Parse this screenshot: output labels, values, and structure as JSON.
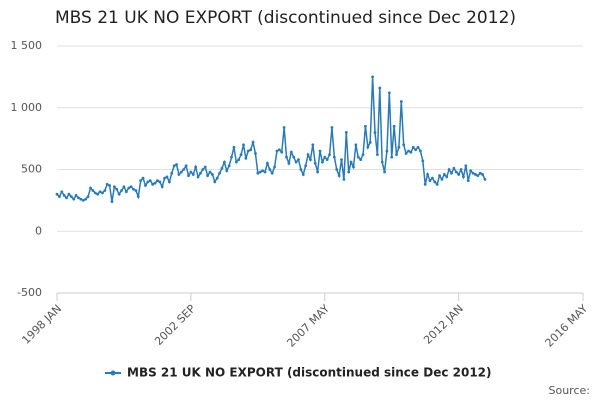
{
  "chart_data": {
    "type": "line",
    "title": "MBS 21 UK NO EXPORT (discontinued since Dec 2012)",
    "source": "Source:",
    "x": [
      "1998-01",
      "1998-02",
      "1998-03",
      "1998-04",
      "1998-05",
      "1998-06",
      "1998-07",
      "1998-08",
      "1998-09",
      "1998-10",
      "1998-11",
      "1998-12",
      "1999-01",
      "1999-02",
      "1999-03",
      "1999-04",
      "1999-05",
      "1999-06",
      "1999-07",
      "1999-08",
      "1999-09",
      "1999-10",
      "1999-11",
      "1999-12",
      "2000-01",
      "2000-02",
      "2000-03",
      "2000-04",
      "2000-05",
      "2000-06",
      "2000-07",
      "2000-08",
      "2000-09",
      "2000-10",
      "2000-11",
      "2000-12",
      "2001-01",
      "2001-02",
      "2001-03",
      "2001-04",
      "2001-05",
      "2001-06",
      "2001-07",
      "2001-08",
      "2001-09",
      "2001-10",
      "2001-11",
      "2001-12",
      "2002-01",
      "2002-02",
      "2002-03",
      "2002-04",
      "2002-05",
      "2002-06",
      "2002-07",
      "2002-08",
      "2002-09",
      "2002-10",
      "2002-11",
      "2002-12",
      "2003-01",
      "2003-02",
      "2003-03",
      "2003-04",
      "2003-05",
      "2003-06",
      "2003-07",
      "2003-08",
      "2003-09",
      "2003-10",
      "2003-11",
      "2003-12",
      "2004-01",
      "2004-02",
      "2004-03",
      "2004-04",
      "2004-05",
      "2004-06",
      "2004-07",
      "2004-08",
      "2004-09",
      "2004-10",
      "2004-11",
      "2004-12",
      "2005-01",
      "2005-02",
      "2005-03",
      "2005-04",
      "2005-05",
      "2005-06",
      "2005-07",
      "2005-08",
      "2005-09",
      "2005-10",
      "2005-11",
      "2005-12",
      "2006-01",
      "2006-02",
      "2006-03",
      "2006-04",
      "2006-05",
      "2006-06",
      "2006-07",
      "2006-08",
      "2006-09",
      "2006-10",
      "2006-11",
      "2006-12",
      "2007-01",
      "2007-02",
      "2007-03",
      "2007-04",
      "2007-05",
      "2007-06",
      "2007-07",
      "2007-08",
      "2007-09",
      "2007-10",
      "2007-11",
      "2007-12",
      "2008-01",
      "2008-02",
      "2008-03",
      "2008-04",
      "2008-05",
      "2008-06",
      "2008-07",
      "2008-08",
      "2008-09",
      "2008-10",
      "2008-11",
      "2008-12",
      "2009-01",
      "2009-02",
      "2009-03",
      "2009-04",
      "2009-05",
      "2009-06",
      "2009-07",
      "2009-08",
      "2009-09",
      "2009-10",
      "2009-11",
      "2009-12",
      "2010-01",
      "2010-02",
      "2010-03",
      "2010-04",
      "2010-05",
      "2010-06",
      "2010-07",
      "2010-08",
      "2010-09",
      "2010-10",
      "2010-11",
      "2010-12",
      "2011-01",
      "2011-02",
      "2011-03",
      "2011-04",
      "2011-05",
      "2011-06",
      "2011-07",
      "2011-08",
      "2011-09",
      "2011-10",
      "2011-11",
      "2011-12",
      "2012-01",
      "2012-02",
      "2012-03",
      "2012-04",
      "2012-05",
      "2012-06",
      "2012-07",
      "2012-08",
      "2012-09",
      "2012-10",
      "2012-11",
      "2012-12"
    ],
    "series": [
      {
        "name": "MBS 21 UK NO EXPORT (discontinued since Dec 2012)",
        "color": "#2a7ab8",
        "values": [
          300,
          280,
          320,
          290,
          270,
          300,
          280,
          260,
          290,
          270,
          260,
          250,
          260,
          280,
          350,
          330,
          310,
          300,
          320,
          310,
          330,
          380,
          370,
          240,
          360,
          340,
          300,
          330,
          360,
          320,
          350,
          360,
          340,
          330,
          280,
          410,
          430,
          370,
          400,
          410,
          380,
          390,
          410,
          400,
          360,
          430,
          440,
          400,
          470,
          530,
          540,
          460,
          480,
          500,
          530,
          450,
          480,
          460,
          520,
          440,
          470,
          500,
          520,
          450,
          480,
          460,
          400,
          430,
          470,
          510,
          560,
          490,
          530,
          600,
          680,
          560,
          580,
          620,
          700,
          590,
          650,
          660,
          720,
          630,
          470,
          480,
          490,
          480,
          550,
          500,
          470,
          520,
          650,
          660,
          640,
          840,
          600,
          550,
          640,
          600,
          560,
          580,
          500,
          460,
          530,
          620,
          580,
          700,
          550,
          480,
          650,
          560,
          600,
          580,
          620,
          840,
          600,
          500,
          450,
          580,
          420,
          800,
          480,
          560,
          520,
          700,
          600,
          580,
          620,
          850,
          680,
          720,
          1250,
          800,
          620,
          1160,
          560,
          480,
          650,
          1120,
          600,
          850,
          620,
          680,
          1050,
          700,
          630,
          650,
          640,
          680,
          660,
          680,
          650,
          570,
          380,
          460,
          410,
          430,
          400,
          380,
          450,
          420,
          460,
          440,
          500,
          470,
          510,
          480,
          460,
          500,
          440,
          530,
          410,
          490,
          470,
          460,
          450,
          470,
          460,
          420
        ]
      }
    ],
    "xlim": [
      "1998-01",
      "2016-05"
    ],
    "xticks": [
      {
        "value": "1998-01",
        "label": "1998 JAN"
      },
      {
        "value": "2002-09",
        "label": "2002 SEP"
      },
      {
        "value": "2007-05",
        "label": "2007 MAY"
      },
      {
        "value": "2012-01",
        "label": "2012 JAN"
      },
      {
        "value": "2016-05",
        "label": "2016 MAY"
      }
    ],
    "ylim": [
      -500,
      1500
    ],
    "yticks": [
      -500,
      0,
      500,
      {
        "value": 1000,
        "label": "1 000"
      },
      {
        "value": 1500,
        "label": "1 500"
      }
    ],
    "grid": true,
    "legend": "bottom"
  }
}
